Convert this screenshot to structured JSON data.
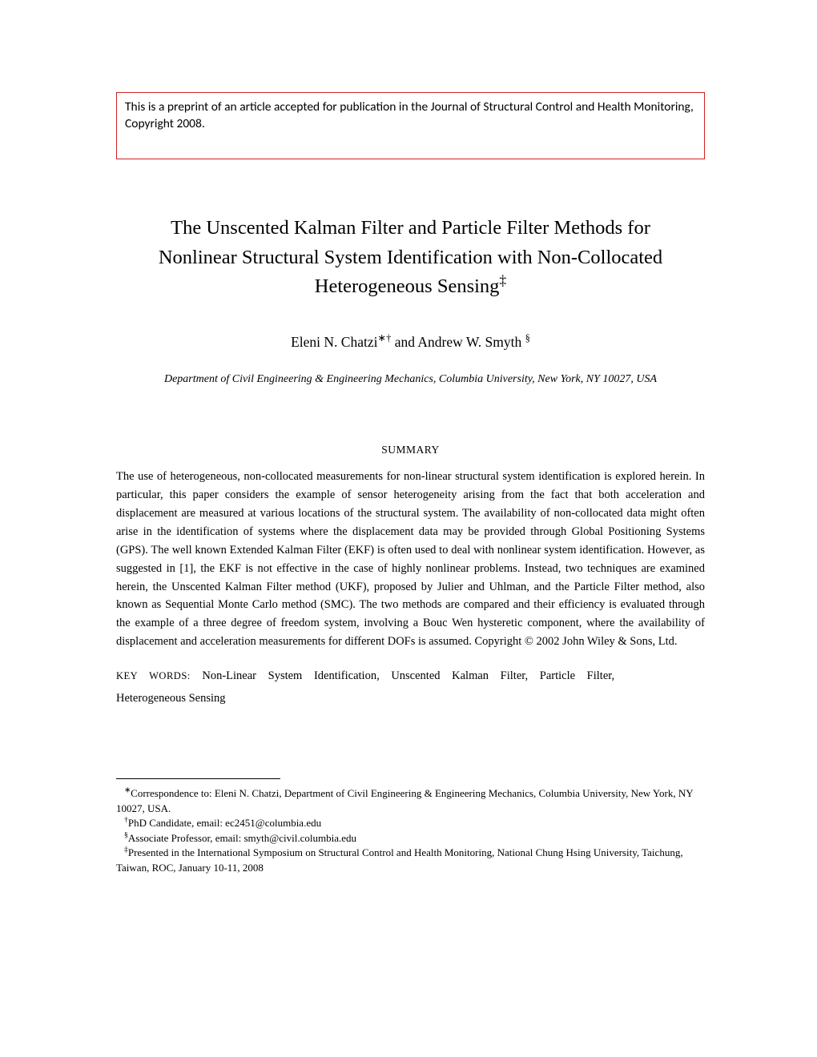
{
  "preprint_notice": "This is a preprint of an article accepted for publication in the Journal of Structural Control and Health Monitoring, Copyright 2008.",
  "title_line1": "The Unscented Kalman Filter and Particle Filter Methods for",
  "title_line2": "Nonlinear Structural System Identification with Non-Collocated",
  "title_line3": "Heterogeneous Sensing",
  "title_sup": "‡",
  "author1": "Eleni N. Chatzi",
  "author1_sup": "∗†",
  "authors_and": " and ",
  "author2": "Andrew W. Smyth ",
  "author2_sup": "§",
  "affiliation": "Department of Civil Engineering & Engineering Mechanics, Columbia University, New York, NY 10027, USA",
  "summary_heading": "SUMMARY",
  "summary_body": "The use of heterogeneous, non-collocated measurements for non-linear structural system identification is explored herein. In particular, this paper considers the example of sensor heterogeneity arising from the fact that both acceleration and displacement are measured at various locations of the structural system. The availability of non-collocated data might often arise in the identification of systems where the displacement data may be provided through Global Positioning Systems (GPS). The well known Extended Kalman Filter (EKF) is often used to deal with nonlinear system identification. However, as suggested in [1], the EKF is not effective in the case of highly nonlinear problems. Instead, two techniques are examined herein, the Unscented Kalman Filter method (UKF), proposed by Julier and Uhlman, and the Particle Filter method, also known as Sequential Monte Carlo method (SMC). The two methods are compared and their efficiency is evaluated through the example of a three degree of freedom system, involving a Bouc Wen hysteretic component, where the availability of displacement and acceleration measurements for different DOFs is assumed.  Copyright © 2002 John Wiley & Sons, Ltd.",
  "keywords_label": "KEY WORDS:",
  "keywords_line": "Non-Linear System Identification, Unscented Kalman Filter, Particle Filter,",
  "keywords_line2": "Heterogeneous Sensing",
  "footnotes": {
    "f1_mark": "∗",
    "f1": "Correspondence to: Eleni N. Chatzi, Department of Civil Engineering & Engineering Mechanics, Columbia University, New York, NY 10027, USA.",
    "f2_mark": "†",
    "f2": "PhD Candidate, email: ec2451@columbia.edu",
    "f3_mark": "§",
    "f3": "Associate Professor, email: smyth@civil.columbia.edu",
    "f4_mark": "‡",
    "f4": "Presented in the International Symposium on Structural Control and Health Monitoring, National Chung Hsing University, Taichung, Taiwan, ROC, January 10-11, 2008"
  },
  "colors": {
    "notice_border": "#d02020",
    "text": "#000000",
    "background": "#ffffff"
  }
}
